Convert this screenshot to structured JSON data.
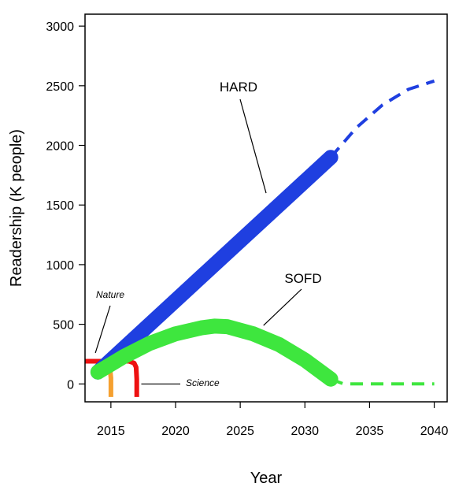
{
  "chart_data": {
    "type": "line",
    "title": "",
    "xlabel": "Year",
    "ylabel": "Readership (K people)",
    "xlim": [
      2013,
      2041
    ],
    "ylim": [
      -150,
      3100
    ],
    "x_ticks": [
      2015,
      2020,
      2025,
      2030,
      2035,
      2040
    ],
    "y_ticks": [
      0,
      500,
      1000,
      1500,
      2000,
      2500,
      3000
    ],
    "grid": false,
    "legend": "none",
    "series": [
      {
        "name": "HARD",
        "color": "#1f3fe0",
        "observed": {
          "x": [
            2014,
            2032
          ],
          "y": [
            100,
            1900
          ]
        },
        "projected": {
          "x": [
            2032,
            2034,
            2036,
            2038,
            2040
          ],
          "y": [
            1900,
            2150,
            2340,
            2470,
            2540
          ]
        }
      },
      {
        "name": "SOFD",
        "color": "#3ee63e",
        "observed": {
          "x": [
            2014,
            2016,
            2018,
            2020,
            2022,
            2023,
            2024,
            2026,
            2028,
            2030,
            2032
          ],
          "y": [
            100,
            230,
            340,
            420,
            470,
            485,
            480,
            420,
            330,
            200,
            40
          ]
        },
        "projected": {
          "x": [
            2032,
            2033,
            2040
          ],
          "y": [
            40,
            0,
            0
          ]
        }
      },
      {
        "name": "Nature",
        "color": "#f5a030",
        "observed": {
          "x": [
            2013,
            2014.8,
            2014.9,
            2015,
            2015
          ],
          "y": [
            190,
            190,
            160,
            50,
            -110
          ]
        }
      },
      {
        "name": "Science",
        "color": "#ee1111",
        "observed": {
          "x": [
            2013,
            2016.4,
            2016.8,
            2016.95,
            2017,
            2017
          ],
          "y": [
            190,
            190,
            175,
            140,
            40,
            -110
          ]
        }
      }
    ],
    "annotations": [
      {
        "text": "HARD",
        "series": "HARD"
      },
      {
        "text": "SOFD",
        "series": "SOFD"
      },
      {
        "text": "Nature",
        "series": "Nature"
      },
      {
        "text": "Science",
        "series": "Science"
      }
    ]
  }
}
